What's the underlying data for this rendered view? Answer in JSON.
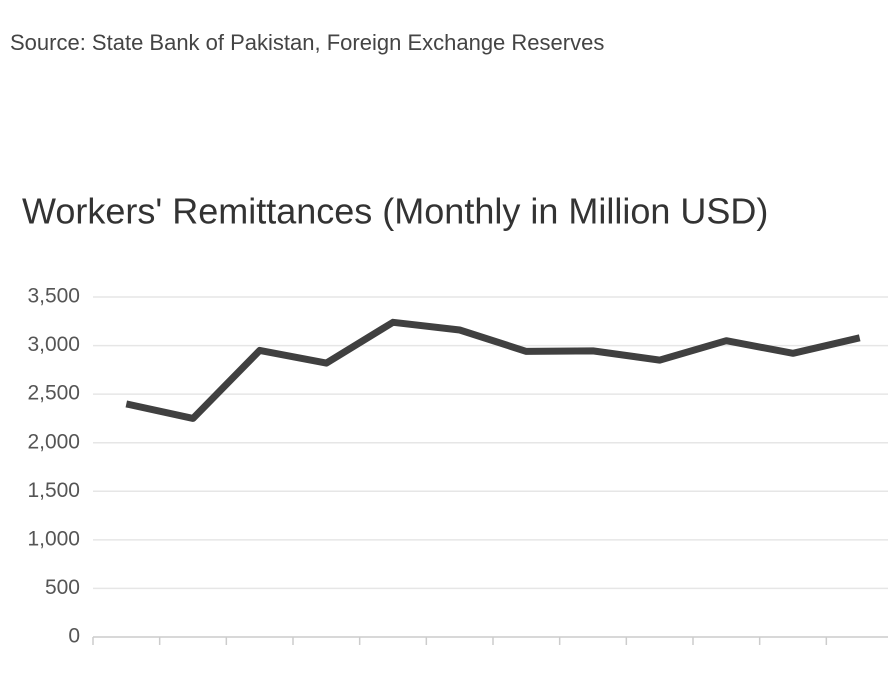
{
  "chart_data": {
    "type": "line",
    "source": "Source: State Bank of Pakistan, Foreign Exchange Reserves",
    "title": "Workers' Remittances (Monthly in Million USD)",
    "categories": [
      null,
      null,
      null,
      null,
      null,
      null,
      null,
      null,
      null,
      null,
      null,
      null
    ],
    "series": [
      {
        "name": "Workers' Remittances",
        "color": "#404040",
        "values": [
          2400,
          2250,
          2950,
          2820,
          3240,
          3160,
          2940,
          2945,
          2850,
          3050,
          2920,
          3080
        ]
      }
    ],
    "ylim": [
      0,
      3500
    ],
    "yticks": [
      0,
      {
        "value": 500,
        "label": "500"
      },
      {
        "value": 1000,
        "label": "1,000"
      },
      {
        "value": 1500,
        "label": "1,500"
      },
      {
        "value": 2000,
        "label": "2,000"
      },
      {
        "value": 2500,
        "label": "2,500"
      },
      {
        "value": 3000,
        "label": "3,000"
      },
      {
        "value": 3500,
        "label": "3,500"
      }
    ],
    "grid": true
  }
}
